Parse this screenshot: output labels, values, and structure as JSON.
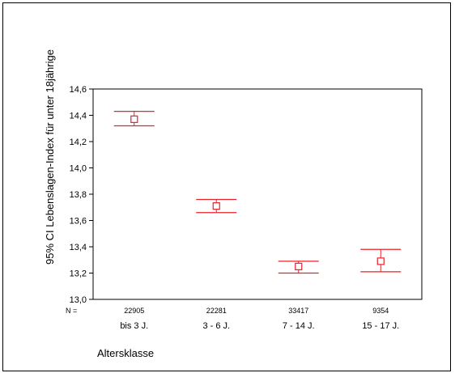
{
  "chart_data": {
    "type": "errorbar",
    "ylabel": "95% CI Lebenslagen-Index für unter 18jährige",
    "xlabel": "Altersklasse",
    "n_prefix": "N =",
    "ylim": [
      13.0,
      14.6
    ],
    "yticks": [
      13.0,
      13.2,
      13.4,
      13.6,
      13.8,
      14.0,
      14.2,
      14.4,
      14.6
    ],
    "ytick_labels": [
      "13,0",
      "13,2",
      "13,4",
      "13,6",
      "13,8",
      "14,0",
      "14,2",
      "14,4",
      "14,6"
    ],
    "categories": [
      "bis 3 J.",
      "3 - 6 J.",
      "7 - 14 J.",
      "15 - 17 J."
    ],
    "n_values": [
      "22905",
      "22281",
      "33417",
      "9354"
    ],
    "series": [
      {
        "means": [
          14.37,
          13.71,
          13.25,
          13.29
        ],
        "lower": [
          14.32,
          13.66,
          13.2,
          13.21
        ],
        "upper": [
          14.43,
          13.76,
          13.29,
          13.38
        ]
      }
    ],
    "color": "#e8222a",
    "grid": false
  }
}
